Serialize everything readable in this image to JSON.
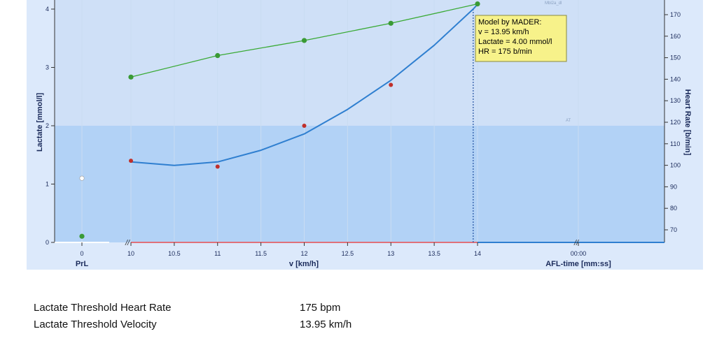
{
  "chart_data": {
    "type": "line",
    "xlabel": "v [km/h]",
    "ylabel": "Lactate [mmol/l]",
    "y2label": "Heart Rate [b/min]",
    "x_ticks": [
      10,
      10.5,
      11,
      11.5,
      12,
      12.5,
      13,
      13.5,
      14
    ],
    "xlim": [
      10,
      14
    ],
    "ylim": [
      0,
      4.1
    ],
    "y_ticks": [
      0,
      1,
      2,
      3,
      4
    ],
    "y2lim": [
      65,
      175
    ],
    "y2_ticks": [
      70,
      80,
      90,
      100,
      110,
      120,
      130,
      140,
      150,
      160,
      170
    ],
    "prl_label": "PrL",
    "prl_tick": "0",
    "afl_label": "AFL-time [mm:ss]",
    "afl_tick": "00:00",
    "corner_tag": "Mbl2a_dl",
    "at_tag": "AT",
    "lactate_points": [
      {
        "x": 10,
        "y": 1.4
      },
      {
        "x": 11,
        "y": 1.3
      },
      {
        "x": 12,
        "y": 2.0
      },
      {
        "x": 13,
        "y": 2.7
      }
    ],
    "lactate_prl": 1.1,
    "lactate_model_curve": [
      {
        "x": 10,
        "y": 1.38
      },
      {
        "x": 10.5,
        "y": 1.32
      },
      {
        "x": 11,
        "y": 1.38
      },
      {
        "x": 11.5,
        "y": 1.58
      },
      {
        "x": 12,
        "y": 1.86
      },
      {
        "x": 12.5,
        "y": 2.28
      },
      {
        "x": 13,
        "y": 2.78
      },
      {
        "x": 13.5,
        "y": 3.38
      },
      {
        "x": 13.95,
        "y": 4.0
      },
      {
        "x": 14,
        "y": 4.08
      }
    ],
    "hr_points": [
      {
        "x": 10,
        "y": 141
      },
      {
        "x": 11,
        "y": 151
      },
      {
        "x": 12,
        "y": 158
      },
      {
        "x": 13,
        "y": 166
      },
      {
        "x": 14,
        "y": 175
      }
    ],
    "hr_prl": 67,
    "threshold_v": 13.95,
    "threshold_lactate": 4.0,
    "tooltip_lines": [
      "Model by MADER:",
      "v = 13.95 km/h",
      "Lactate = 4.00 mmol/l",
      "HR = 175 b/min"
    ],
    "colors": {
      "plot_bg_top": "#cfe0f7",
      "plot_bg_bottom": "#b2d2f6",
      "frame_bg": "#dce9fb",
      "lactate_curve": "#2f7fd0",
      "lactate_point": "#c0302b",
      "hr_line": "#3aaa35",
      "hr_point": "#3a9a35",
      "tooltip_bg": "#f7f28a",
      "threshold_line": "#1f4fa0"
    }
  },
  "summary": [
    {
      "label": "Lactate Threshold Heart Rate",
      "value": "175 bpm"
    },
    {
      "label": "Lactate Threshold Velocity",
      "value": "13.95 km/h"
    }
  ]
}
